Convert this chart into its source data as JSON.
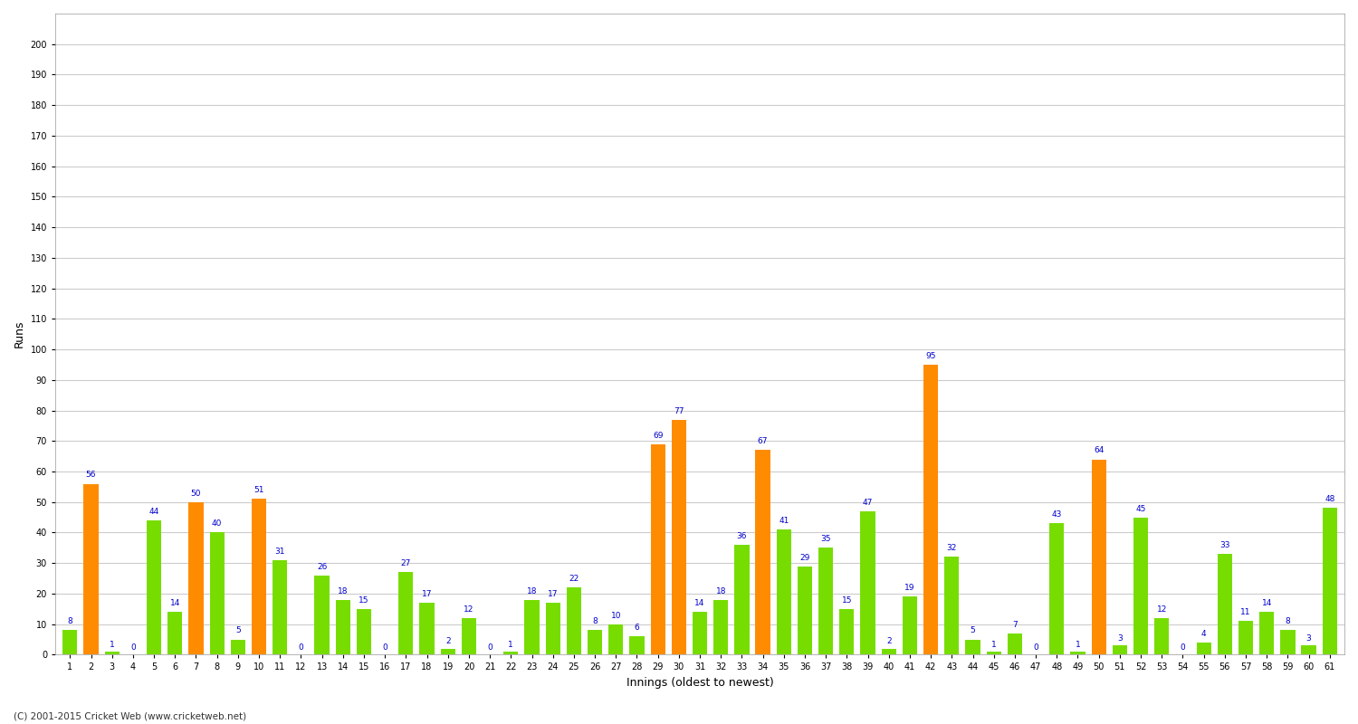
{
  "xlabel": "Innings (oldest to newest)",
  "ylabel": "Runs",
  "background_color": "#ffffff",
  "grid_color": "#cccccc",
  "ylim": [
    0,
    210
  ],
  "yticks": [
    0,
    10,
    20,
    30,
    40,
    50,
    60,
    70,
    80,
    90,
    100,
    110,
    120,
    130,
    140,
    150,
    160,
    170,
    180,
    190,
    200
  ],
  "footer": "(C) 2001-2015 Cricket Web (www.cricketweb.net)",
  "innings": [
    {
      "inning": 1,
      "runs": 8,
      "orange": false
    },
    {
      "inning": 2,
      "runs": 56,
      "orange": true
    },
    {
      "inning": 3,
      "runs": 1,
      "orange": false
    },
    {
      "inning": 4,
      "runs": 0,
      "orange": false
    },
    {
      "inning": 5,
      "runs": 44,
      "orange": false
    },
    {
      "inning": 6,
      "runs": 14,
      "orange": false
    },
    {
      "inning": 7,
      "runs": 50,
      "orange": true
    },
    {
      "inning": 8,
      "runs": 40,
      "orange": false
    },
    {
      "inning": 9,
      "runs": 5,
      "orange": false
    },
    {
      "inning": 10,
      "runs": 51,
      "orange": true
    },
    {
      "inning": 11,
      "runs": 31,
      "orange": false
    },
    {
      "inning": 12,
      "runs": 0,
      "orange": false
    },
    {
      "inning": 13,
      "runs": 26,
      "orange": false
    },
    {
      "inning": 14,
      "runs": 18,
      "orange": false
    },
    {
      "inning": 15,
      "runs": 15,
      "orange": false
    },
    {
      "inning": 16,
      "runs": 0,
      "orange": false
    },
    {
      "inning": 17,
      "runs": 27,
      "orange": false
    },
    {
      "inning": 18,
      "runs": 17,
      "orange": false
    },
    {
      "inning": 19,
      "runs": 2,
      "orange": false
    },
    {
      "inning": 20,
      "runs": 12,
      "orange": false
    },
    {
      "inning": 21,
      "runs": 0,
      "orange": false
    },
    {
      "inning": 22,
      "runs": 1,
      "orange": false
    },
    {
      "inning": 23,
      "runs": 18,
      "orange": false
    },
    {
      "inning": 24,
      "runs": 17,
      "orange": false
    },
    {
      "inning": 25,
      "runs": 22,
      "orange": false
    },
    {
      "inning": 26,
      "runs": 8,
      "orange": false
    },
    {
      "inning": 27,
      "runs": 10,
      "orange": false
    },
    {
      "inning": 28,
      "runs": 6,
      "orange": false
    },
    {
      "inning": 29,
      "runs": 69,
      "orange": true
    },
    {
      "inning": 30,
      "runs": 77,
      "orange": true
    },
    {
      "inning": 31,
      "runs": 14,
      "orange": false
    },
    {
      "inning": 32,
      "runs": 18,
      "orange": false
    },
    {
      "inning": 33,
      "runs": 36,
      "orange": false
    },
    {
      "inning": 34,
      "runs": 67,
      "orange": true
    },
    {
      "inning": 35,
      "runs": 41,
      "orange": false
    },
    {
      "inning": 36,
      "runs": 29,
      "orange": false
    },
    {
      "inning": 37,
      "runs": 35,
      "orange": false
    },
    {
      "inning": 38,
      "runs": 15,
      "orange": false
    },
    {
      "inning": 39,
      "runs": 47,
      "orange": false
    },
    {
      "inning": 40,
      "runs": 2,
      "orange": false
    },
    {
      "inning": 41,
      "runs": 19,
      "orange": false
    },
    {
      "inning": 42,
      "runs": 95,
      "orange": true
    },
    {
      "inning": 43,
      "runs": 32,
      "orange": false
    },
    {
      "inning": 44,
      "runs": 5,
      "orange": false
    },
    {
      "inning": 45,
      "runs": 1,
      "orange": false
    },
    {
      "inning": 46,
      "runs": 7,
      "orange": false
    },
    {
      "inning": 47,
      "runs": 0,
      "orange": false
    },
    {
      "inning": 48,
      "runs": 43,
      "orange": false
    },
    {
      "inning": 49,
      "runs": 1,
      "orange": false
    },
    {
      "inning": 50,
      "runs": 64,
      "orange": true
    },
    {
      "inning": 51,
      "runs": 3,
      "orange": false
    },
    {
      "inning": 52,
      "runs": 45,
      "orange": false
    },
    {
      "inning": 53,
      "runs": 12,
      "orange": false
    },
    {
      "inning": 54,
      "runs": 0,
      "orange": false
    },
    {
      "inning": 55,
      "runs": 4,
      "orange": false
    },
    {
      "inning": 56,
      "runs": 33,
      "orange": false
    },
    {
      "inning": 57,
      "runs": 11,
      "orange": false
    },
    {
      "inning": 58,
      "runs": 14,
      "orange": false
    },
    {
      "inning": 59,
      "runs": 8,
      "orange": false
    },
    {
      "inning": 60,
      "runs": 3,
      "orange": false
    },
    {
      "inning": 61,
      "runs": 48,
      "orange": false
    }
  ],
  "colors": {
    "orange": "#ff8c00",
    "green": "#77dd00",
    "label": "#0000cc"
  }
}
